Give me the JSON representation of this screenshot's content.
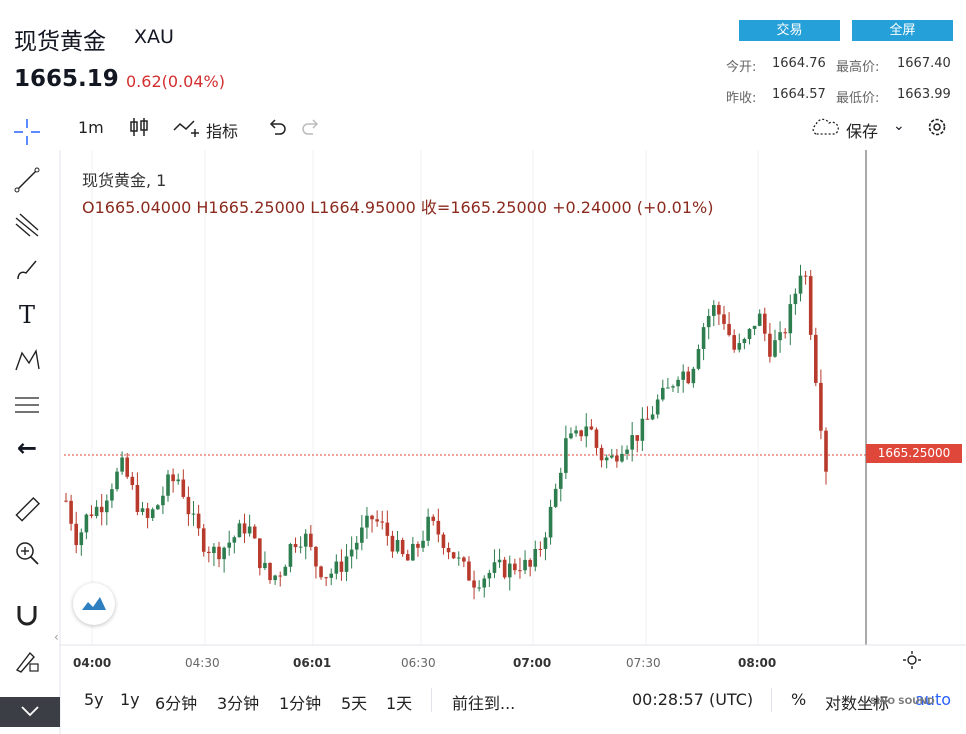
{
  "header": {
    "title": "现货黄金",
    "symbol": "XAU",
    "last_price": "1665.19",
    "change": "0.62(0.04%)",
    "trade_button": "交易",
    "fullscreen_button": "全屏",
    "quote": {
      "open_label": "今开:",
      "open": "1664.76",
      "high_label": "最高价:",
      "high": "1667.40",
      "prev_close_label": "昨收:",
      "prev_close": "1664.57",
      "low_label": "最低价:",
      "low": "1663.99"
    }
  },
  "toolbar": {
    "interval": "1m",
    "indicators_label": "指标",
    "save_label": "保存"
  },
  "legend": {
    "line1": "现货黄金, 1",
    "line2": "O1665.04000   H1665.25000   L1664.95000   收=1665.25000   +0.24000 (+0.01%)"
  },
  "price_label": "1665.25000",
  "bottom_bar": {
    "ranges": [
      "5y",
      "1y",
      "6分钟",
      "3分钟",
      "1分钟",
      "5天",
      "1天"
    ],
    "goto": "前往到...",
    "clock": "00:28:57 (UTC)",
    "percent": "%",
    "log": "对数坐标",
    "auto": "auto"
  },
  "watermark": "SINO SOUND",
  "colors": {
    "up": "#2e7d4f",
    "down": "#b83a2c",
    "accent": "#26a0d8",
    "price_tag": "#e0473b"
  },
  "chart_data": {
    "type": "candlestick",
    "title": "现货黄金, 1",
    "x_ticks": [
      "04:00",
      "04:30",
      "06:01",
      "06:30",
      "07:00",
      "07:30",
      "08:00"
    ],
    "last_value": 1665.25,
    "approx_close_series": [
      1664.9,
      1664.55,
      1664.8,
      1664.85,
      1665.05,
      1665.2,
      1664.95,
      1664.7,
      1664.85,
      1665.05,
      1665.1,
      1664.75,
      1664.55,
      1664.45,
      1664.5,
      1664.6,
      1664.7,
      1664.4,
      1664.2,
      1664.3,
      1664.55,
      1664.6,
      1664.35,
      1664.25,
      1664.3,
      1664.45,
      1664.6,
      1664.75,
      1664.65,
      1664.5,
      1664.35,
      1664.5,
      1664.7,
      1664.6,
      1664.45,
      1664.3,
      1664.2,
      1664.25,
      1664.3,
      1664.3,
      1664.35,
      1664.3,
      1664.55,
      1664.9,
      1665.4,
      1665.45,
      1665.6,
      1665.3,
      1665.25,
      1665.4,
      1665.45,
      1665.55,
      1665.75,
      1665.85,
      1666.05,
      1666.0,
      1666.4,
      1666.6,
      1666.5,
      1666.2,
      1666.3,
      1666.55,
      1666.25,
      1666.3,
      1666.6,
      1667.05,
      1666.1,
      1665.2
    ]
  }
}
